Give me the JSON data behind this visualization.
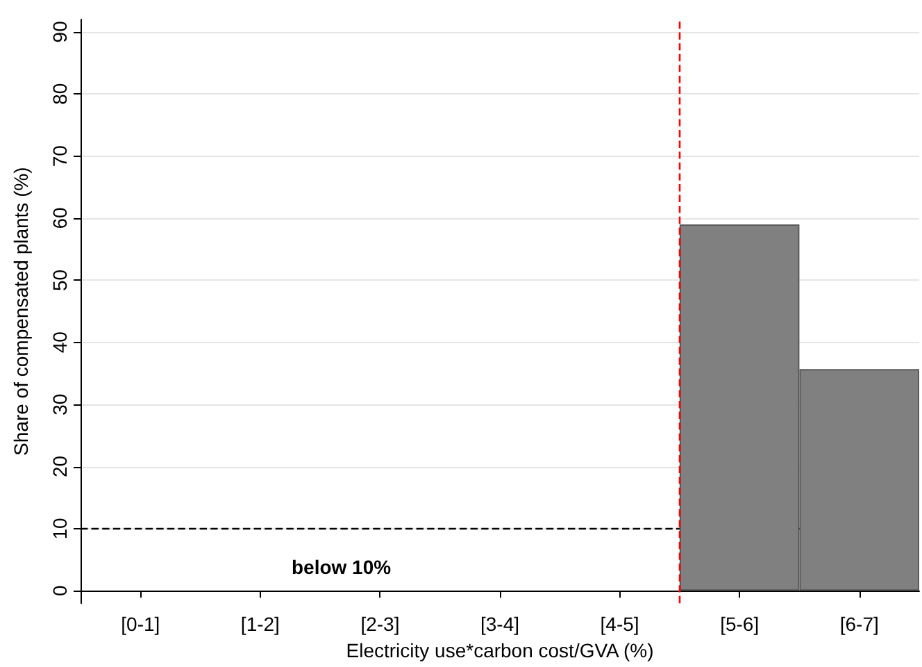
{
  "chart_data": {
    "type": "bar",
    "xlabel": "Electricity use*carbon cost/GVA (%)",
    "ylabel": "Share of compensated plants (%)",
    "categories": [
      "[0-1]",
      "[1-2]",
      "[2-3]",
      "[3-4]",
      "[4-5]",
      "[5-6]",
      "[6-7]"
    ],
    "values": [
      null,
      null,
      null,
      null,
      null,
      59,
      35.7
    ],
    "color": "#808080",
    "ylim": [
      -2,
      92
    ],
    "yticks": [
      0,
      10,
      20,
      30,
      40,
      50,
      60,
      70,
      80,
      90
    ],
    "grid": "y",
    "ref_lines": [
      {
        "axis": "y",
        "value": 10,
        "color": "#000000",
        "line_style": "dashed"
      },
      {
        "axis": "x",
        "value": "[5-6]",
        "color": "#ff0000",
        "line_style": "dashed"
      }
    ],
    "annotations": [
      "below 10%"
    ]
  }
}
